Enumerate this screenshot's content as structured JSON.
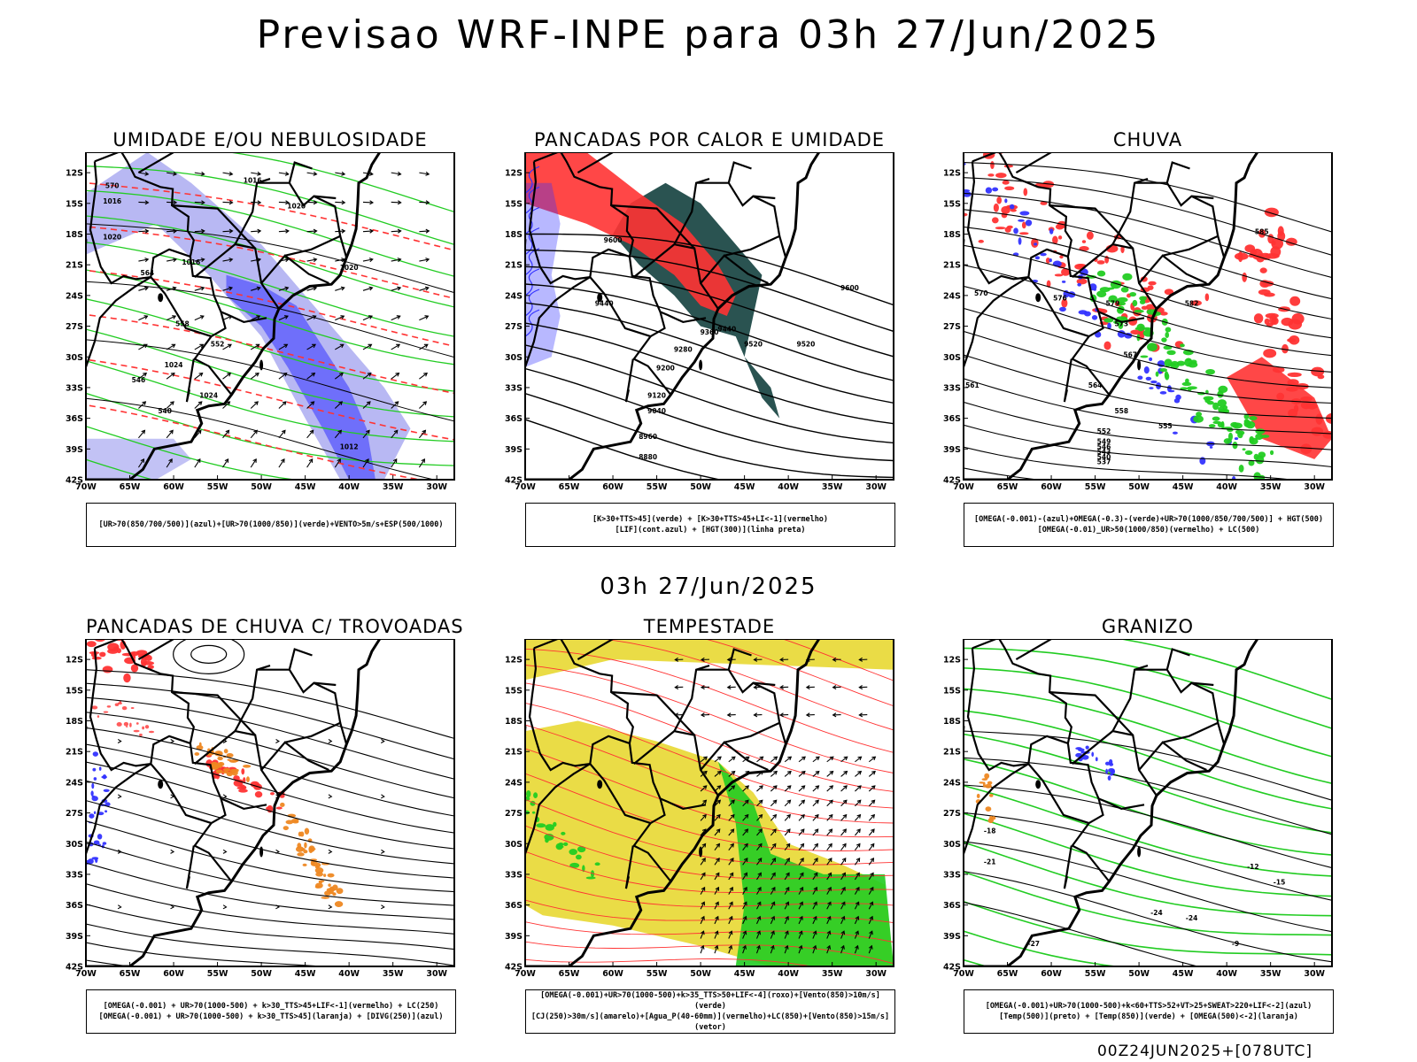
{
  "title": "Previsao WRF-INPE  para 03h 27/Jun/2025",
  "mid_title": "03h 27/Jun/2025",
  "footer": "00Z24JUN2025+[078UTC]",
  "axes": {
    "lat_labels": [
      "12S",
      "15S",
      "18S",
      "21S",
      "24S",
      "27S",
      "30S",
      "33S",
      "36S",
      "39S",
      "42S"
    ],
    "lon_labels": [
      "70W",
      "65W",
      "60W",
      "55W",
      "50W",
      "45W",
      "40W",
      "35W",
      "30W"
    ]
  },
  "panels": [
    {
      "id": "umidade",
      "title": "UMIDADE E/OU NEBULOSIDADE",
      "legend": [
        "[UR>70(850/700/500)](azul)+[UR>70(1000/850)](verde)+VENTO>5m/s+ESP(500/1000)"
      ],
      "labels": [
        "1016",
        "1016",
        "1020",
        "1020",
        "1024",
        "1024",
        "1020",
        "1016",
        "1012",
        "570",
        "564",
        "558",
        "552",
        "546",
        "540"
      ]
    },
    {
      "id": "pancadas-calor",
      "title": "PANCADAS POR CALOR E UMIDADE",
      "legend": [
        "[K>30+TTS>45](verde) + [K>30+TTS>45+LI<-1](vermelho)",
        "[LIF](cont.azul) + [HGT(300)](linha preta)"
      ],
      "labels": [
        "9600",
        "9440",
        "9520",
        "9360",
        "9280",
        "9200",
        "9120",
        "9040",
        "8960",
        "8880",
        "9440",
        "9520",
        "9600"
      ]
    },
    {
      "id": "chuva",
      "title": "CHUVA",
      "legend": [
        "[OMEGA(-0.001)-(azul)+OMEGA(-0.3)-(verde)+UR>70(1000/850/700/500)] + HGT(500)",
        "[OMEGA(-0.01)_UR>50(1000/850)(vermelho) + LC(500)"
      ],
      "labels": [
        "585",
        "582",
        "579",
        "576",
        "573",
        "570",
        "567",
        "564",
        "561",
        "558",
        "555",
        "552",
        "549",
        "546",
        "543",
        "540",
        "537"
      ]
    },
    {
      "id": "pancadas-trovoadas",
      "title": "PANCADAS DE CHUVA C/ TROVOADAS",
      "legend": [
        "[OMEGA(-0.001) + UR>70(1000-500) + k>30_TTS>45+LIF<-1](vermelho) + LC(250)",
        "[OMEGA(-0.001) + UR>70(1000-500) + k>30_TTS>45](laranja) + [DIVG(250)](azul)"
      ],
      "labels": []
    },
    {
      "id": "tempestade",
      "title": "TEMPESTADE",
      "legend": [
        "[OMEGA(-0.001)+UR>70(1000-500)+k>35_TTS>50+LIF<-4](roxo)+[Vento(850)>10m/s](verde)",
        "[CJ(250)>30m/s](amarelo)+[Agua_P(40-60mm)](vermelho)+LC(850)+[Vento(850)>15m/s](vetor)"
      ],
      "labels": []
    },
    {
      "id": "granizo",
      "title": "GRANIZO",
      "legend": [
        "[OMEGA(-0.001)+UR>70(1000-500)+k<60+TTS>52+VT>25+SWEAT>220+LIF<-2](azul)",
        "[Temp(500)](preto) + [Temp(850)](verde) + [OMEGA(500)<-2](laranja)"
      ],
      "labels": [
        "-12",
        "-15",
        "-18",
        "-21",
        "-24",
        "-24",
        "-27",
        "-9"
      ]
    }
  ],
  "colors": {
    "blue": "#3333ff",
    "lightblue": "#9a9aee",
    "green": "#22cc22",
    "red": "#ff3333",
    "darkteal": "#1f4a48",
    "yellow": "#e8d832",
    "orange": "#ee8822"
  }
}
